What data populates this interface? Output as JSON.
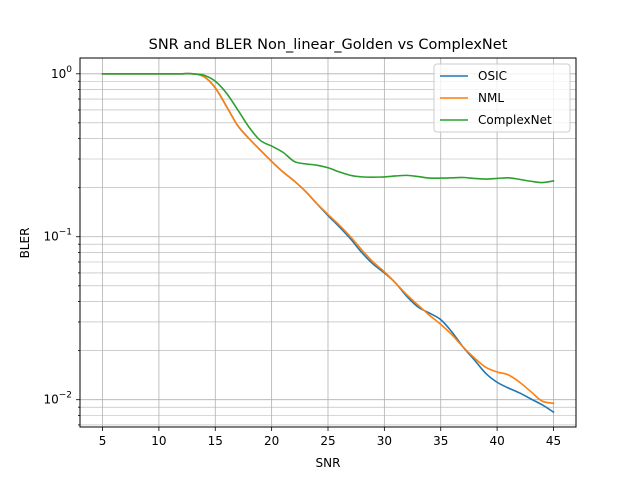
{
  "chart_data": {
    "type": "line",
    "title": "SNR and BLER Non_linear_Golden vs ComplexNet",
    "xlabel": "SNR",
    "ylabel": "BLER",
    "yscale": "log",
    "xlim": [
      3.0,
      47.0
    ],
    "ylim": [
      0.0068,
      1.25
    ],
    "grid": "both",
    "legend_position": "top-right",
    "xticks": [
      5,
      10,
      15,
      20,
      25,
      30,
      35,
      40,
      45
    ],
    "yticks": [
      {
        "value": 1,
        "label": "10^0"
      },
      {
        "value": 0.1,
        "label": "10^-1"
      },
      {
        "value": 0.01,
        "label": "10^-2"
      }
    ],
    "x": [
      5,
      6,
      7,
      8,
      9,
      10,
      11,
      12,
      13,
      14,
      15,
      16,
      17,
      18,
      19,
      20,
      21,
      22,
      23,
      24,
      25,
      26,
      27,
      28,
      29,
      30,
      31,
      32,
      33,
      34,
      35,
      36,
      37,
      38,
      39,
      40,
      41,
      42,
      43,
      44,
      45
    ],
    "series": [
      {
        "name": "OSIC",
        "color": "#1f77b4",
        "values": [
          1.0,
          1.0,
          1.0,
          1.0,
          1.0,
          1.0,
          1.0,
          1.0,
          1.0,
          0.96,
          0.82,
          0.63,
          0.48,
          0.4,
          0.34,
          0.29,
          0.25,
          0.22,
          0.19,
          0.16,
          0.135,
          0.115,
          0.097,
          0.08,
          0.068,
          0.06,
          0.052,
          0.043,
          0.037,
          0.034,
          0.031,
          0.026,
          0.021,
          0.0175,
          0.0145,
          0.0128,
          0.0118,
          0.011,
          0.0101,
          0.0093,
          0.0084
        ]
      },
      {
        "name": "NML",
        "color": "#ff7f0e",
        "values": [
          1.0,
          1.0,
          1.0,
          1.0,
          1.0,
          1.0,
          1.0,
          1.0,
          1.0,
          0.96,
          0.82,
          0.63,
          0.48,
          0.4,
          0.34,
          0.29,
          0.25,
          0.22,
          0.19,
          0.16,
          0.137,
          0.118,
          0.1,
          0.083,
          0.07,
          0.061,
          0.052,
          0.044,
          0.038,
          0.033,
          0.029,
          0.025,
          0.021,
          0.018,
          0.0158,
          0.0148,
          0.0142,
          0.0128,
          0.0112,
          0.0098,
          0.0095
        ]
      },
      {
        "name": "ComplexNet",
        "color": "#2ca02c",
        "values": [
          1.0,
          1.0,
          1.0,
          1.0,
          1.0,
          1.0,
          1.0,
          1.0,
          1.0,
          0.98,
          0.9,
          0.76,
          0.6,
          0.47,
          0.39,
          0.36,
          0.33,
          0.29,
          0.28,
          0.275,
          0.265,
          0.25,
          0.238,
          0.233,
          0.232,
          0.233,
          0.236,
          0.238,
          0.234,
          0.229,
          0.229,
          0.23,
          0.231,
          0.228,
          0.226,
          0.228,
          0.23,
          0.225,
          0.219,
          0.215,
          0.22
        ]
      }
    ]
  }
}
